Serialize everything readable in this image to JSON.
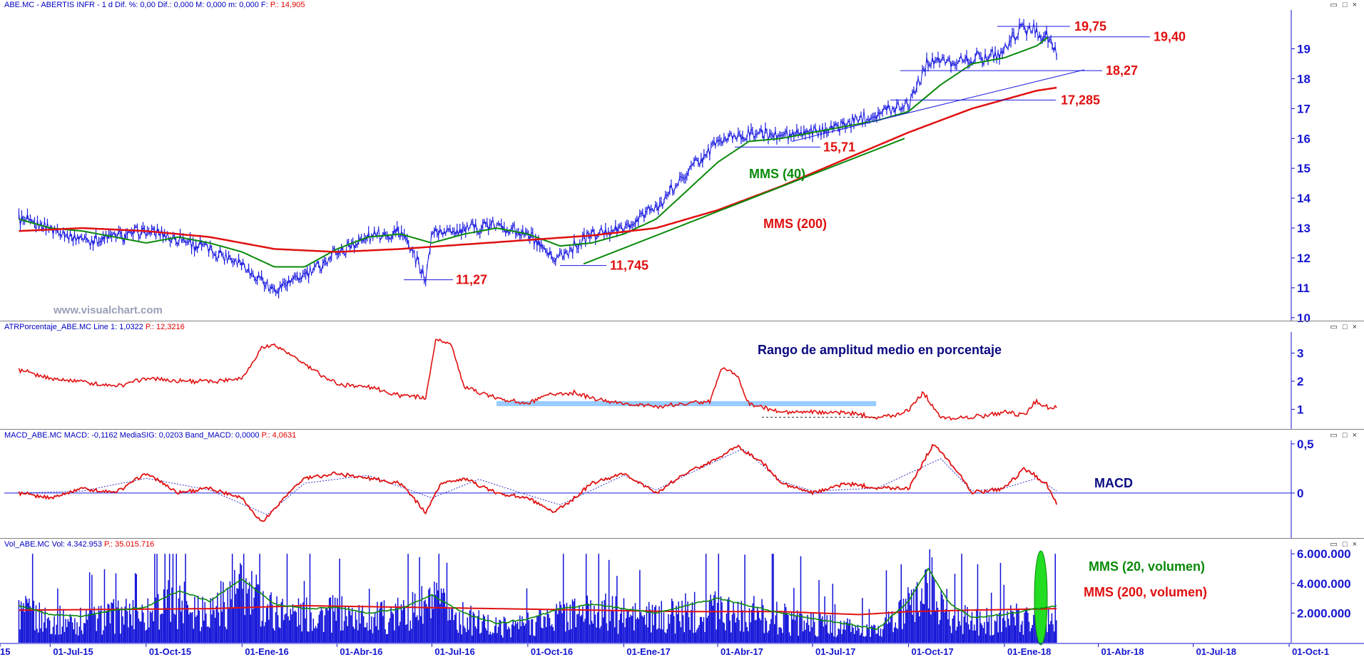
{
  "panels": {
    "price": {
      "header": "ABE.MC - ABERTIS INFR -  1 d  Dif. %: 0,00  Dif.: 0,000  M: 0,000  m: 0,000  F:",
      "header_value": "P.: 14,905"
    },
    "atr": {
      "header": "ATRPorcentaje_ABE.MC  Line 1: 1,0322",
      "header_value": "P.: 12,3216"
    },
    "macd": {
      "header": "MACD_ABE.MC  MACD: -0,1162  MediaSIG: 0,0203  Band_MACD: 0,0000",
      "header_value": "P.: 4,0631"
    },
    "vol": {
      "header": "Vol_ABE.MC  Vol: 4.342.953",
      "header_value": "P.: 35.015.716"
    }
  },
  "window_buttons": "▭ □ ×",
  "watermark": "www.visualchart.com",
  "annotations": {
    "price_levels": [
      "19,75",
      "19,40",
      "18,27",
      "17,285",
      "15,71",
      "11,745",
      "11,27"
    ],
    "mms40": "MMS (40)",
    "mms200": "MMS (200)",
    "atr_title": "Rango de amplitud medio en porcentaje",
    "macd_title": "MACD",
    "vol_mms20": "MMS (20, volumen)",
    "vol_mms200": "MMS (200, volumen)"
  },
  "chart_data": [
    {
      "type": "line",
      "title": "ABE.MC - ABERTIS INFR - 1 d",
      "x_ticks": [
        "15",
        "01-Jul-15",
        "01-Oct-15",
        "01-Ene-16",
        "01-Abr-16",
        "01-Jul-16",
        "01-Oct-16",
        "01-Ene-17",
        "01-Abr-17",
        "01-Jul-17",
        "01-Oct-17",
        "01-Ene-18",
        "01-Abr-18",
        "01-Jul-18",
        "01-Oct-1"
      ],
      "y_ticks": [
        10,
        11,
        12,
        13,
        14,
        15,
        16,
        17,
        18,
        19
      ],
      "ylim": [
        9.9,
        20.3
      ],
      "series": [
        {
          "name": "ABE.MC",
          "color": "#1a1ae0",
          "x": [
            "2015-06-01",
            "2015-07-01",
            "2015-08-01",
            "2015-09-01",
            "2015-10-01",
            "2015-11-01",
            "2015-12-01",
            "2016-01-01",
            "2016-02-01",
            "2016-03-01",
            "2016-04-01",
            "2016-05-01",
            "2016-06-01",
            "2016-06-25",
            "2016-07-01",
            "2016-08-01",
            "2016-09-01",
            "2016-10-01",
            "2016-10-25",
            "2016-11-15",
            "2016-12-01",
            "2017-01-01",
            "2017-02-01",
            "2017-03-01",
            "2017-04-01",
            "2017-05-01",
            "2017-06-01",
            "2017-07-01",
            "2017-08-01",
            "2017-09-01",
            "2017-10-01",
            "2017-10-20",
            "2017-11-01",
            "2017-12-01",
            "2018-01-01",
            "2018-01-15",
            "2018-02-01",
            "2018-02-12",
            "2018-02-20"
          ],
          "values": [
            13.3,
            13.0,
            12.6,
            12.7,
            12.9,
            12.6,
            12.3,
            11.8,
            10.9,
            11.4,
            12.2,
            12.7,
            12.9,
            11.3,
            12.8,
            13.0,
            13.1,
            12.8,
            11.9,
            12.4,
            12.8,
            13.0,
            13.7,
            14.8,
            15.9,
            16.2,
            16.1,
            16.2,
            16.5,
            16.8,
            17.2,
            18.6,
            18.6,
            18.6,
            18.9,
            19.7,
            19.6,
            19.4,
            18.7
          ]
        },
        {
          "name": "MMS (40)",
          "color": "#0a8a0a",
          "x": [
            "2015-06-01",
            "2015-07-01",
            "2015-08-01",
            "2015-09-01",
            "2015-10-01",
            "2015-11-01",
            "2015-12-01",
            "2016-01-01",
            "2016-02-01",
            "2016-03-01",
            "2016-04-01",
            "2016-05-01",
            "2016-06-01",
            "2016-07-01",
            "2016-08-01",
            "2016-09-01",
            "2016-10-01",
            "2016-11-01",
            "2016-12-01",
            "2017-01-01",
            "2017-02-01",
            "2017-03-01",
            "2017-04-01",
            "2017-05-01",
            "2017-06-01",
            "2017-07-01",
            "2017-08-01",
            "2017-09-01",
            "2017-10-01",
            "2017-11-01",
            "2017-12-01",
            "2018-01-01",
            "2018-02-01",
            "2018-02-12"
          ],
          "values": [
            13.3,
            13.0,
            12.9,
            12.7,
            12.5,
            12.7,
            12.5,
            12.2,
            11.7,
            11.7,
            12.3,
            12.7,
            12.8,
            12.5,
            12.8,
            13.0,
            12.8,
            12.4,
            12.5,
            12.8,
            13.3,
            14.2,
            15.2,
            15.9,
            16.0,
            16.2,
            16.4,
            16.6,
            16.9,
            17.8,
            18.5,
            18.7,
            19.1,
            19.4
          ]
        },
        {
          "name": "MMS (200)",
          "color": "#e01010",
          "x": [
            "2015-06-01",
            "2015-08-01",
            "2015-10-01",
            "2015-12-01",
            "2016-02-01",
            "2016-04-01",
            "2016-06-01",
            "2016-08-01",
            "2016-10-01",
            "2016-12-01",
            "2017-02-01",
            "2017-04-01",
            "2017-06-01",
            "2017-08-01",
            "2017-10-01",
            "2017-12-01",
            "2018-02-01",
            "2018-02-20"
          ],
          "values": [
            12.9,
            13.0,
            12.9,
            12.7,
            12.3,
            12.2,
            12.3,
            12.45,
            12.6,
            12.75,
            13.0,
            13.6,
            14.4,
            15.3,
            16.2,
            17.0,
            17.6,
            17.7
          ]
        }
      ]
    },
    {
      "type": "line",
      "title": "ATRPorcentaje_ABE.MC",
      "y_ticks": [
        1,
        2,
        3
      ],
      "ylim": [
        0.3,
        3.7
      ],
      "series": [
        {
          "name": "ATRPorcentaje_ABE.MC",
          "color": "#e01010",
          "x": [
            "2015-06-01",
            "2015-07-01",
            "2015-08-01",
            "2015-09-01",
            "2015-10-01",
            "2015-11-01",
            "2015-12-01",
            "2016-01-01",
            "2016-01-20",
            "2016-02-01",
            "2016-03-01",
            "2016-04-01",
            "2016-05-01",
            "2016-06-01",
            "2016-06-25",
            "2016-07-05",
            "2016-07-20",
            "2016-08-01",
            "2016-09-01",
            "2016-10-01",
            "2016-10-20",
            "2016-11-15",
            "2016-12-01",
            "2017-01-01",
            "2017-02-01",
            "2017-03-01",
            "2017-03-25",
            "2017-04-05",
            "2017-04-20",
            "2017-05-01",
            "2017-06-01",
            "2017-07-01",
            "2017-08-01",
            "2017-09-01",
            "2017-09-20",
            "2017-10-01",
            "2017-10-15",
            "2017-11-01",
            "2017-12-01",
            "2018-01-01",
            "2018-01-20",
            "2018-02-01",
            "2018-02-15",
            "2018-02-20"
          ],
          "values": [
            2.4,
            2.1,
            2.0,
            1.8,
            2.1,
            2.0,
            2.0,
            2.1,
            3.2,
            3.3,
            2.6,
            1.9,
            1.8,
            1.5,
            1.4,
            3.5,
            3.3,
            1.8,
            1.4,
            1.2,
            1.5,
            1.6,
            1.4,
            1.2,
            1.1,
            1.2,
            1.3,
            2.5,
            2.2,
            1.2,
            0.9,
            0.9,
            0.9,
            0.7,
            0.8,
            1.0,
            1.6,
            0.7,
            0.7,
            0.9,
            0.8,
            1.3,
            1.0,
            1.05
          ]
        },
        {
          "name": "banda",
          "color": "#99ccff",
          "x": [
            "2016-09-01",
            "2017-08-31"
          ],
          "values": [
            1.2,
            1.2
          ]
        }
      ]
    },
    {
      "type": "line",
      "title": "MACD_ABE.MC",
      "y_ticks": [
        0,
        0.5
      ],
      "ylim": [
        -0.45,
        0.55
      ],
      "series": [
        {
          "name": "MACD",
          "color": "#e01010",
          "x": [
            "2015-06-01",
            "2015-07-01",
            "2015-08-01",
            "2015-09-01",
            "2015-10-01",
            "2015-11-01",
            "2015-12-01",
            "2016-01-01",
            "2016-01-20",
            "2016-02-15",
            "2016-03-01",
            "2016-04-01",
            "2016-05-01",
            "2016-06-01",
            "2016-06-25",
            "2016-07-10",
            "2016-08-01",
            "2016-09-01",
            "2016-10-01",
            "2016-10-25",
            "2016-11-15",
            "2016-12-01",
            "2017-01-01",
            "2017-02-01",
            "2017-03-01",
            "2017-04-01",
            "2017-04-20",
            "2017-05-15",
            "2017-06-01",
            "2017-07-01",
            "2017-08-01",
            "2017-09-01",
            "2017-10-01",
            "2017-10-25",
            "2017-11-15",
            "2017-12-01",
            "2018-01-01",
            "2018-01-20",
            "2018-02-10",
            "2018-02-20"
          ],
          "values": [
            0.0,
            -0.05,
            0.05,
            0.0,
            0.2,
            0.0,
            0.05,
            -0.05,
            -0.3,
            0.0,
            0.15,
            0.2,
            0.15,
            0.1,
            -0.2,
            0.1,
            0.15,
            0.0,
            -0.05,
            -0.2,
            -0.05,
            0.1,
            0.2,
            0.0,
            0.2,
            0.35,
            0.48,
            0.3,
            0.1,
            0.0,
            0.1,
            0.05,
            0.05,
            0.5,
            0.25,
            0.0,
            0.05,
            0.25,
            0.1,
            -0.12
          ]
        },
        {
          "name": "MediaSIG",
          "color": "#3333cc",
          "x": [
            "2015-06-01",
            "2015-08-01",
            "2015-10-01",
            "2015-12-01",
            "2016-01-25",
            "2016-03-01",
            "2016-05-01",
            "2016-07-01",
            "2016-08-15",
            "2016-10-01",
            "2016-11-01",
            "2017-01-01",
            "2017-02-01",
            "2017-03-01",
            "2017-04-25",
            "2017-06-01",
            "2017-07-01",
            "2017-09-01",
            "2017-11-01",
            "2017-12-01",
            "2018-01-01",
            "2018-02-01",
            "2018-02-20"
          ],
          "values": [
            0.0,
            0.02,
            0.15,
            0.03,
            -0.22,
            0.1,
            0.18,
            -0.05,
            0.14,
            -0.02,
            -0.12,
            0.18,
            0.03,
            0.18,
            0.45,
            0.12,
            0.02,
            0.05,
            0.35,
            0.02,
            0.05,
            0.15,
            0.02
          ]
        }
      ]
    },
    {
      "type": "bar",
      "title": "Vol_ABE.MC",
      "y_ticks": [
        2000000,
        4000000,
        6000000
      ],
      "ylim": [
        0,
        6200000
      ],
      "series": [
        {
          "name": "MMS (20, volumen)",
          "color": "#0a8a0a",
          "x": [
            "2015-06-01",
            "2015-07-01",
            "2015-08-01",
            "2015-09-01",
            "2015-10-01",
            "2015-11-01",
            "2015-12-01",
            "2016-01-01",
            "2016-02-01",
            "2016-03-01",
            "2016-04-01",
            "2016-05-01",
            "2016-06-01",
            "2016-07-01",
            "2016-08-01",
            "2016-09-01",
            "2016-10-01",
            "2016-11-01",
            "2016-12-01",
            "2017-01-01",
            "2017-02-01",
            "2017-03-01",
            "2017-04-01",
            "2017-05-01",
            "2017-06-01",
            "2017-07-01",
            "2017-08-01",
            "2017-09-01",
            "2017-10-01",
            "2017-10-20",
            "2017-11-10",
            "2017-12-01",
            "2018-01-01",
            "2018-02-01",
            "2018-02-20"
          ],
          "values": [
            2500000,
            1900000,
            1800000,
            2200000,
            2400000,
            3500000,
            2800000,
            4300000,
            2600000,
            2300000,
            2400000,
            2000000,
            2300000,
            3200000,
            2000000,
            1300000,
            1600000,
            2300000,
            2600000,
            2300000,
            2000000,
            2500000,
            3000000,
            2500000,
            2000000,
            1600000,
            1300000,
            900000,
            2800000,
            5000000,
            2600000,
            1700000,
            1900000,
            2300000,
            2500000
          ]
        },
        {
          "name": "MMS (200, volumen)",
          "color": "#e01010",
          "x": [
            "2015-06-01",
            "2015-12-01",
            "2016-03-01",
            "2016-06-01",
            "2016-09-01",
            "2016-12-01",
            "2017-03-01",
            "2017-06-01",
            "2017-08-15",
            "2017-10-01",
            "2017-12-01",
            "2018-02-20"
          ],
          "values": [
            2200000,
            2300000,
            2500000,
            2400000,
            2300000,
            2200000,
            2100000,
            2100000,
            1900000,
            2100000,
            2200000,
            2300000
          ]
        }
      ]
    }
  ]
}
